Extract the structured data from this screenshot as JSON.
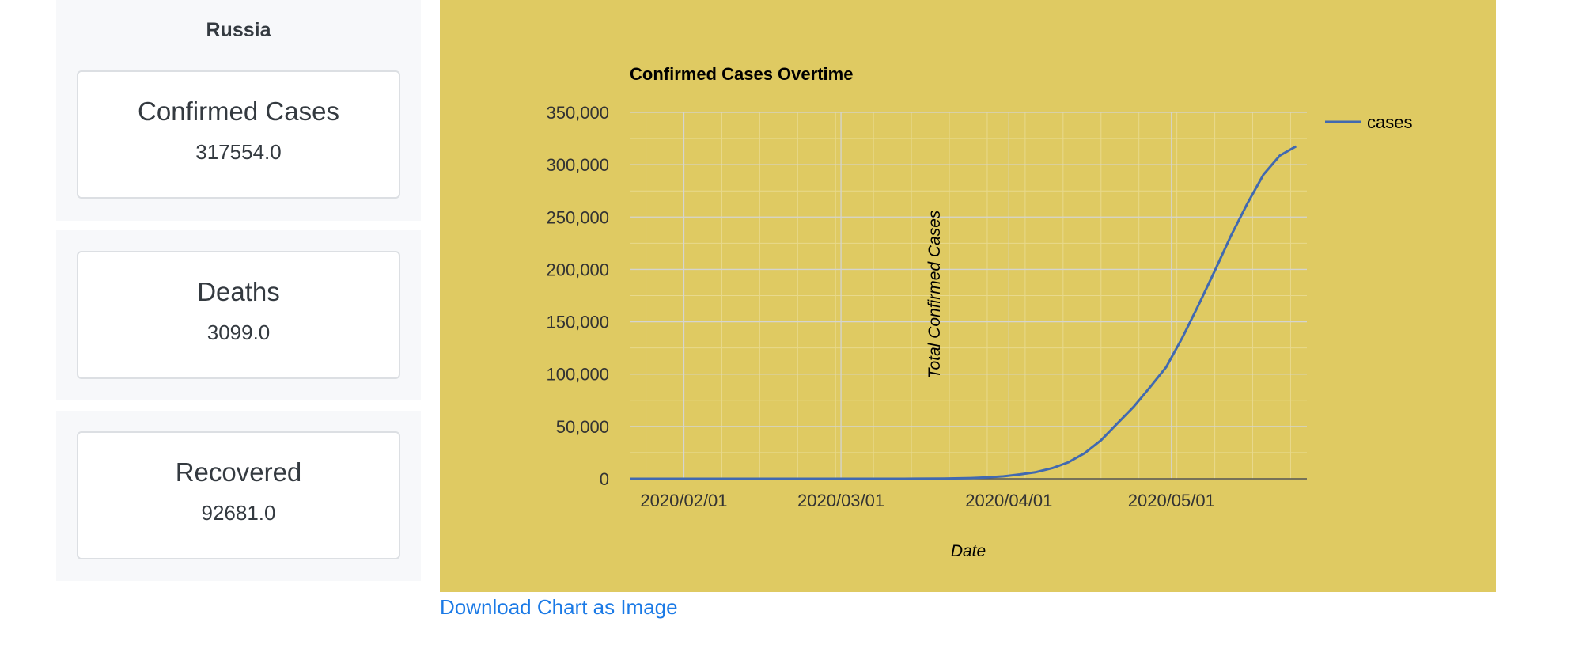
{
  "country": "Russia",
  "stats": {
    "confirmed": {
      "label": "Confirmed Cases",
      "value": "317554.0"
    },
    "deaths": {
      "label": "Deaths",
      "value": "3099.0"
    },
    "recovered": {
      "label": "Recovered",
      "value": "92681.0"
    }
  },
  "download_label": "Download Chart as Image",
  "colors": {
    "chart_background": "#dfca62",
    "series_line": "#4169b0",
    "link": "#1b7ae6"
  },
  "chart_data": {
    "type": "line",
    "title": "Confirmed Cases Overtime",
    "xlabel": "Date",
    "ylabel": "Total Confirmed Cases",
    "x_range": [
      "2020-01-22",
      "2020-05-26"
    ],
    "ylim": [
      0,
      350000
    ],
    "y_ticks": [
      "0",
      "50,000",
      "100,000",
      "150,000",
      "200,000",
      "250,000",
      "300,000",
      "350,000"
    ],
    "x_ticks": [
      {
        "date": "2020-02-01",
        "label": "2020/02/01"
      },
      {
        "date": "2020-03-01",
        "label": "2020/03/01"
      },
      {
        "date": "2020-04-01",
        "label": "2020/04/01"
      },
      {
        "date": "2020-05-01",
        "label": "2020/05/01"
      }
    ],
    "grid": true,
    "legend_position": "top-right",
    "series": [
      {
        "name": "cases",
        "points": [
          [
            "2020-01-22",
            0
          ],
          [
            "2020-01-31",
            2
          ],
          [
            "2020-02-15",
            2
          ],
          [
            "2020-03-01",
            3
          ],
          [
            "2020-03-10",
            10
          ],
          [
            "2020-03-15",
            63
          ],
          [
            "2020-03-20",
            253
          ],
          [
            "2020-03-25",
            658
          ],
          [
            "2020-03-28",
            1264
          ],
          [
            "2020-03-31",
            2337
          ],
          [
            "2020-04-03",
            4149
          ],
          [
            "2020-04-06",
            6343
          ],
          [
            "2020-04-09",
            10131
          ],
          [
            "2020-04-12",
            15770
          ],
          [
            "2020-04-15",
            24490
          ],
          [
            "2020-04-18",
            36793
          ],
          [
            "2020-04-21",
            52763
          ],
          [
            "2020-04-24",
            68622
          ],
          [
            "2020-04-27",
            87147
          ],
          [
            "2020-04-30",
            106498
          ],
          [
            "2020-05-03",
            134687
          ],
          [
            "2020-05-06",
            165929
          ],
          [
            "2020-05-09",
            198676
          ],
          [
            "2020-05-12",
            232243
          ],
          [
            "2020-05-15",
            262843
          ],
          [
            "2020-05-18",
            290678
          ],
          [
            "2020-05-21",
            308705
          ],
          [
            "2020-05-24",
            317554
          ]
        ]
      }
    ]
  }
}
